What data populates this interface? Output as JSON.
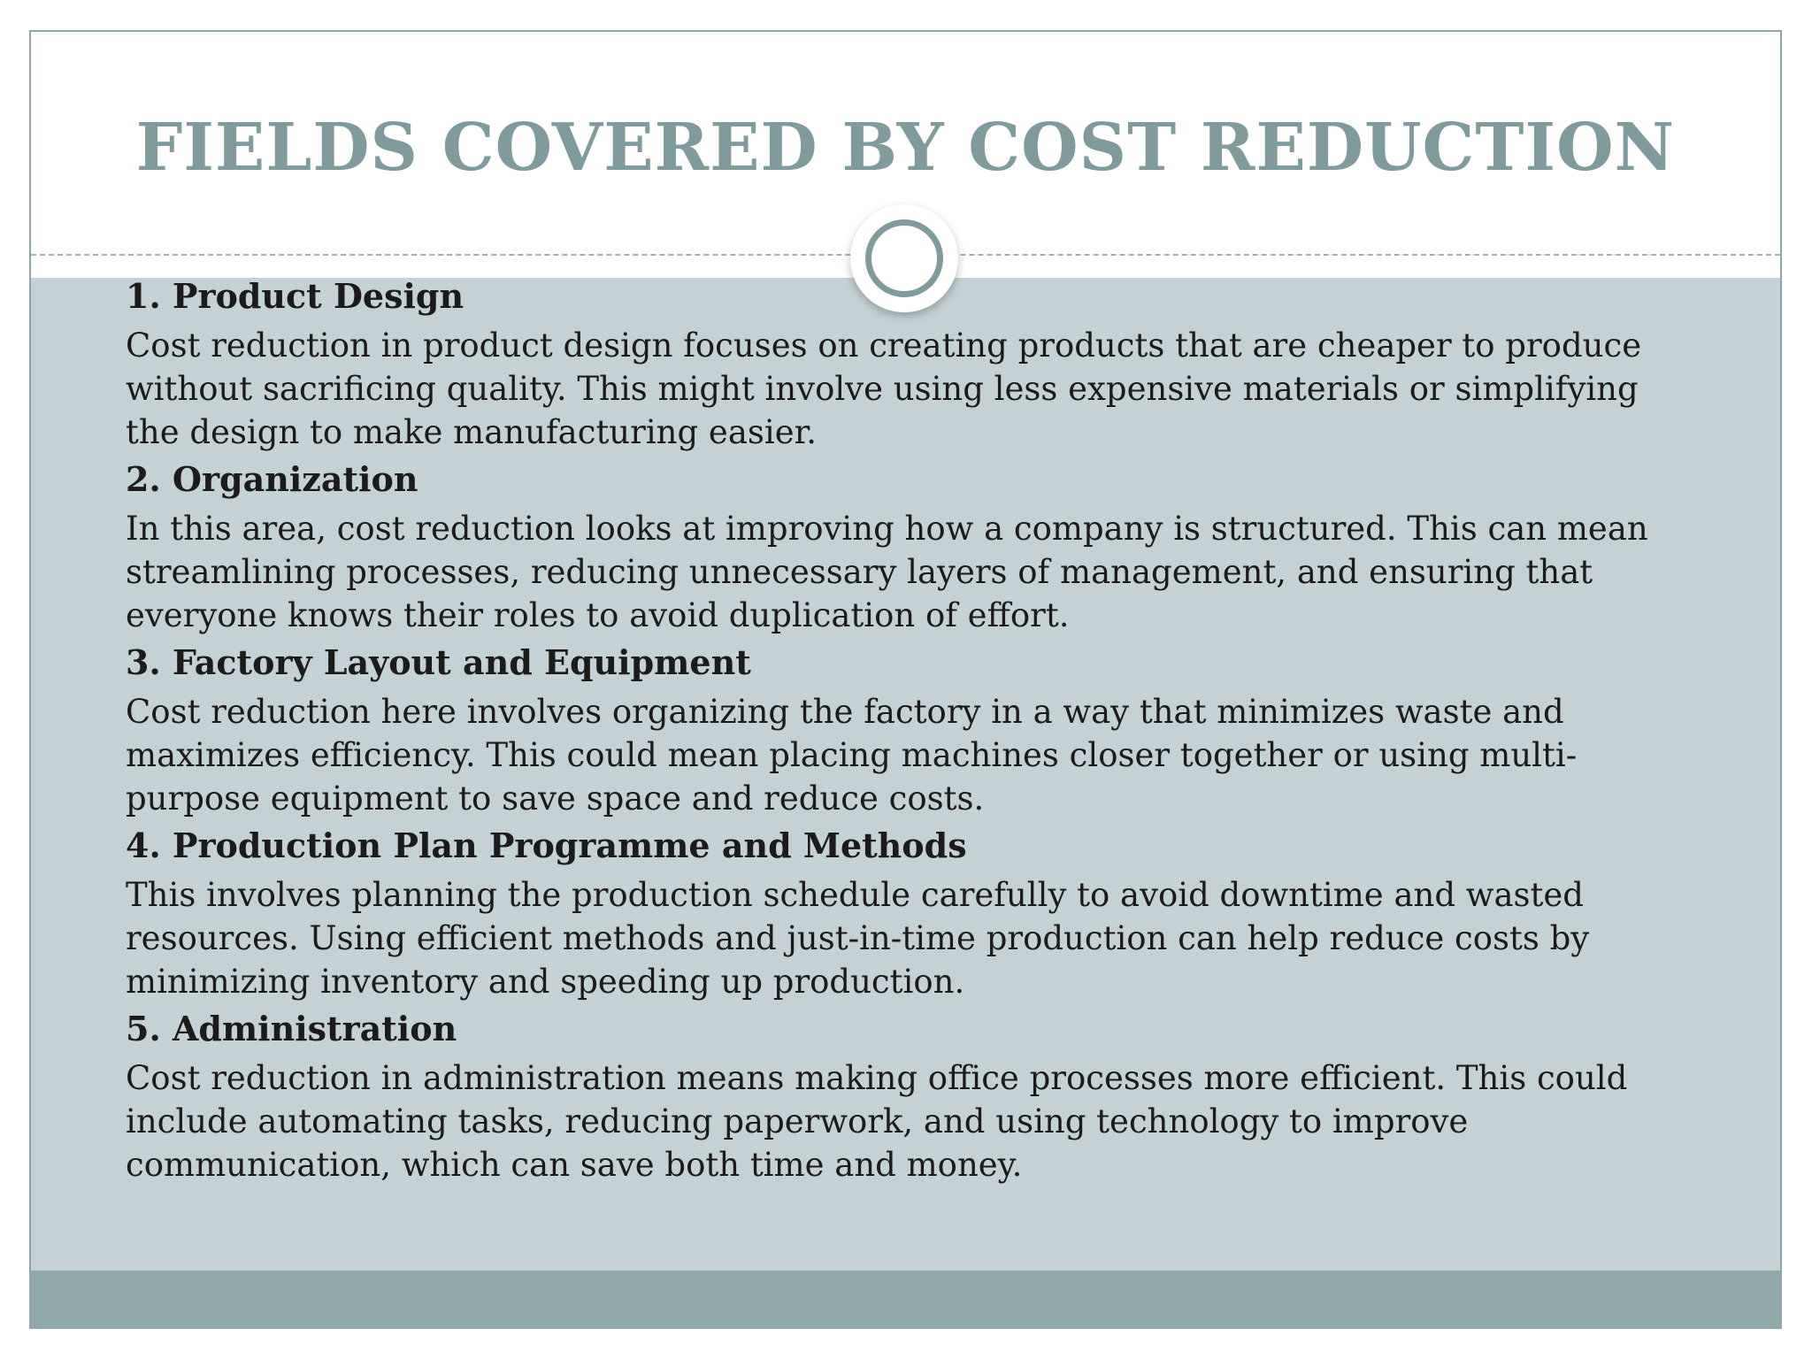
{
  "slide": {
    "title": "FIELDS COVERED BY COST REDUCTION",
    "colors": {
      "title": "#7f9b9c",
      "content_background": "#c4d2d6",
      "footer_bar": "#8fa9aa",
      "border": "#8fa6a8",
      "ring": "#7f9b9c"
    },
    "items": [
      {
        "heading": "1. Product Design",
        "text": "Cost reduction in product design focuses on creating products that are cheaper to produce without sacrificing quality. This might involve using less expensive materials or simplifying the design to make manufacturing easier."
      },
      {
        "heading": "2. Organization",
        "text": "In this area, cost reduction looks at improving how a company is structured. This can mean streamlining processes, reducing unnecessary layers of management, and ensuring that everyone knows their roles to avoid duplication of effort."
      },
      {
        "heading": "3. Factory Layout and Equipment",
        "text": "Cost reduction here involves organizing the factory in a way that minimizes waste and maximizes efficiency. This could mean placing machines closer together or using multi-purpose equipment to save space and reduce costs."
      },
      {
        "heading": "4. Production Plan Programme and Methods",
        "text": "This involves planning the production schedule carefully to avoid downtime and wasted resources. Using efficient methods and just-in-time production can help reduce costs by minimizing inventory and speeding up production."
      },
      {
        "heading": "5. Administration",
        "text": "Cost reduction in administration means making office processes more efficient. This could include automating tasks, reducing paperwork, and using technology to improve communication, which can save both time and money."
      }
    ]
  }
}
